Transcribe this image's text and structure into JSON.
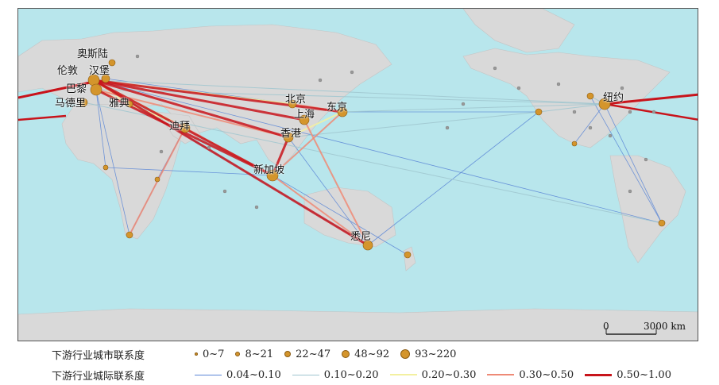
{
  "map": {
    "cities": [
      {
        "name": "奥斯陆",
        "key": "oslo"
      },
      {
        "name": "伦敦",
        "key": "london"
      },
      {
        "name": "汉堡",
        "key": "hamburg"
      },
      {
        "name": "巴黎",
        "key": "paris"
      },
      {
        "name": "马德里",
        "key": "madrid"
      },
      {
        "name": "雅典",
        "key": "athens"
      },
      {
        "name": "迪拜",
        "key": "dubai"
      },
      {
        "name": "北京",
        "key": "beijing"
      },
      {
        "name": "东京",
        "key": "tokyo"
      },
      {
        "name": "上海",
        "key": "shanghai"
      },
      {
        "name": "香港",
        "key": "hongkong"
      },
      {
        "name": "新加坡",
        "key": "singapore"
      },
      {
        "name": "悉尼",
        "key": "sydney"
      },
      {
        "name": "纽约",
        "key": "newyork"
      }
    ],
    "scale_bar": {
      "zero": "0",
      "distance": "3000 km"
    }
  },
  "legend": {
    "node_title": "下游行业城市联系度",
    "node_classes": [
      {
        "label": "0~7",
        "size": "smallest"
      },
      {
        "label": "8~21",
        "size": "small"
      },
      {
        "label": "22~47",
        "size": "medium"
      },
      {
        "label": "48~92",
        "size": "large"
      },
      {
        "label": "93~220",
        "size": "largest"
      }
    ],
    "edge_title": "下游行业城际联系度",
    "edge_classes": [
      {
        "label": "0.04~0.10",
        "color": "#5b86d6"
      },
      {
        "label": "0.10~0.20",
        "color": "#9fc6cf"
      },
      {
        "label": "0.20~0.30",
        "color": "#f3f0a0"
      },
      {
        "label": "0.30~0.50",
        "color": "#ee8a76"
      },
      {
        "label": "0.50~1.00",
        "color": "#c8141b"
      }
    ]
  },
  "colors": {
    "ocean": "#b8e6ec",
    "land": "#d9d9d9",
    "node": "#d4952c"
  }
}
